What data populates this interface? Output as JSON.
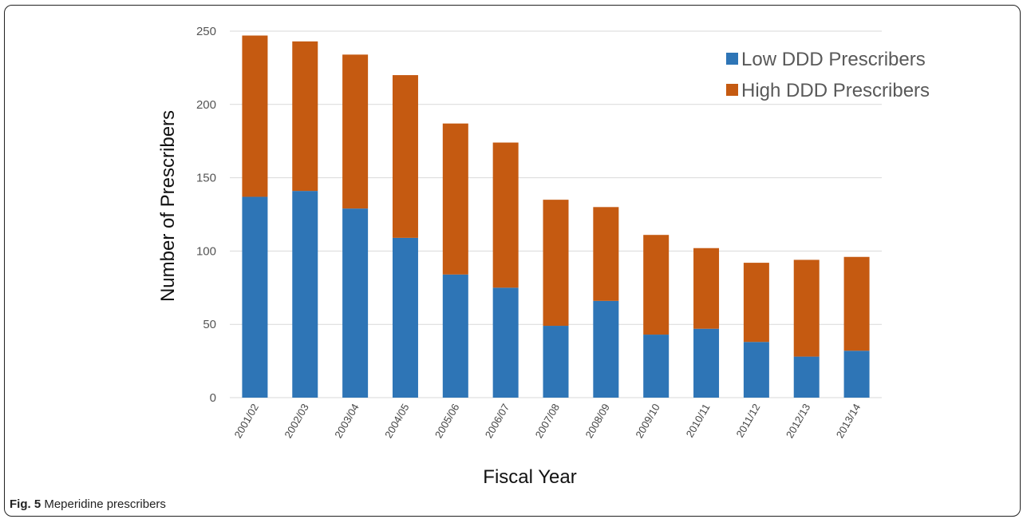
{
  "figure": {
    "caption_label": "Fig. 5",
    "caption_text": " Meperidine prescribers"
  },
  "chart_data": {
    "type": "bar",
    "stacked": true,
    "categories": [
      "2001/02",
      "2002/03",
      "2003/04",
      "2004/05",
      "2005/06",
      "2006/07",
      "2007/08",
      "2008/09",
      "2009/10",
      "2010/11",
      "2011/12",
      "2012/13",
      "2013/14"
    ],
    "series": [
      {
        "name": "Low DDD Prescribers",
        "color": "#2e75b6",
        "values": [
          137,
          141,
          129,
          109,
          84,
          75,
          49,
          66,
          43,
          47,
          38,
          28,
          32
        ]
      },
      {
        "name": "High DDD Prescribers",
        "color": "#c55a11",
        "values": [
          110,
          102,
          105,
          111,
          103,
          99,
          86,
          64,
          68,
          55,
          54,
          66,
          64
        ]
      }
    ],
    "xlabel": "Fiscal Year",
    "ylabel": "Number of Prescribers",
    "ylim": [
      0,
      250
    ],
    "yticks": [
      0,
      50,
      100,
      150,
      200,
      250
    ],
    "grid": true,
    "legend_position": "top-right"
  }
}
